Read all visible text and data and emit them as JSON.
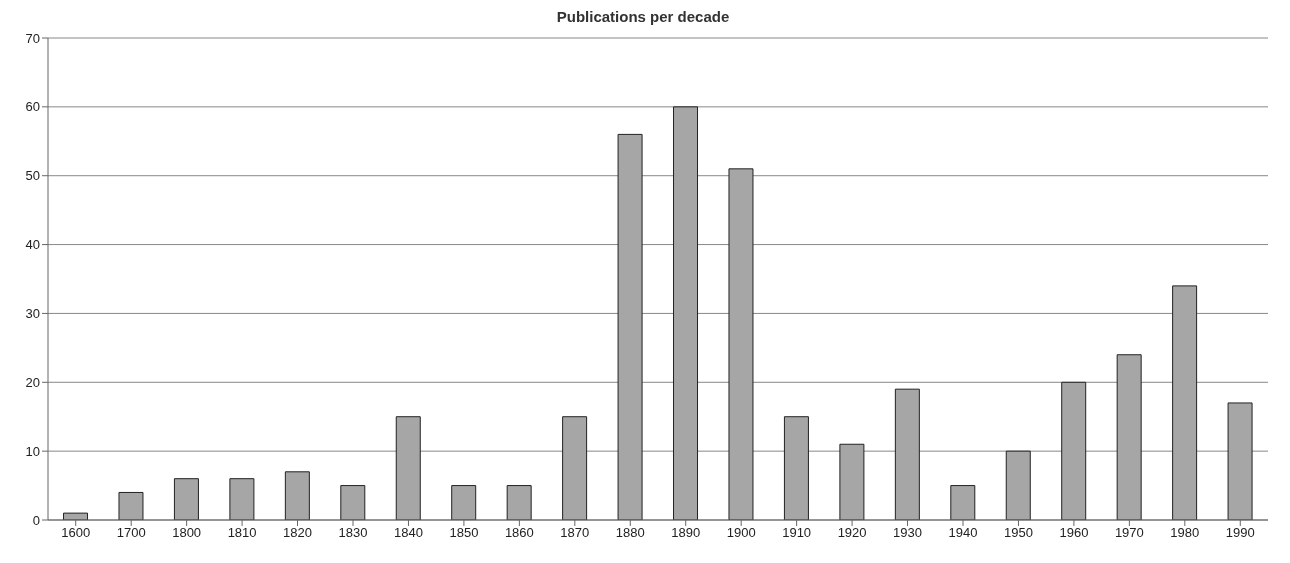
{
  "chart_data": {
    "type": "bar",
    "title": "Publications per decade",
    "categories": [
      "1600",
      "1700",
      "1800",
      "1810",
      "1820",
      "1830",
      "1840",
      "1850",
      "1860",
      "1870",
      "1880",
      "1890",
      "1900",
      "1910",
      "1920",
      "1930",
      "1940",
      "1950",
      "1960",
      "1970",
      "1980",
      "1990"
    ],
    "values": [
      1,
      4,
      6,
      6,
      7,
      5,
      15,
      5,
      5,
      15,
      56,
      60,
      51,
      15,
      11,
      19,
      5,
      10,
      20,
      24,
      34,
      17
    ],
    "color": "#a6a6a6",
    "ylim": [
      0,
      70
    ],
    "yticks": [
      0,
      10,
      20,
      30,
      40,
      50,
      60,
      70
    ],
    "grid": "y"
  }
}
